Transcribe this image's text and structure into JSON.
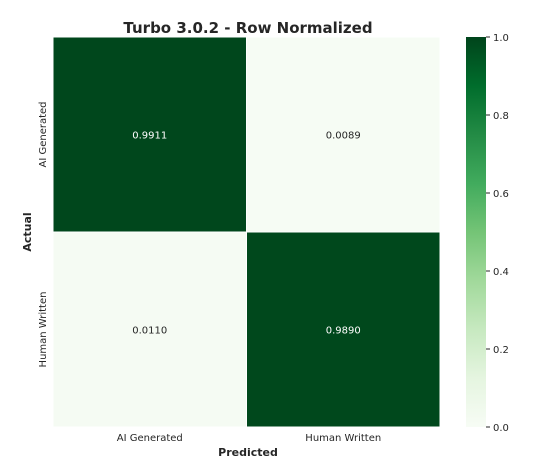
{
  "chart_data": {
    "type": "heatmap",
    "title": "Turbo 3.0.2 - Row Normalized",
    "xlabel": "Predicted",
    "ylabel": "Actual",
    "x_categories": [
      "AI Generated",
      "Human Written"
    ],
    "y_categories": [
      "AI Generated",
      "Human Written"
    ],
    "values": [
      [
        0.9911,
        0.0089
      ],
      [
        0.011,
        0.989
      ]
    ],
    "cell_labels": [
      [
        "0.9911",
        "0.0089"
      ],
      [
        "0.0110",
        "0.9890"
      ]
    ],
    "colorbar": {
      "range": [
        0.0,
        1.0
      ],
      "ticks": [
        "0.0",
        "0.2",
        "0.4",
        "0.6",
        "0.8",
        "1.0"
      ],
      "colormap": "Greens",
      "low_color": "#f7fcf5",
      "high_color": "#00441b"
    }
  }
}
